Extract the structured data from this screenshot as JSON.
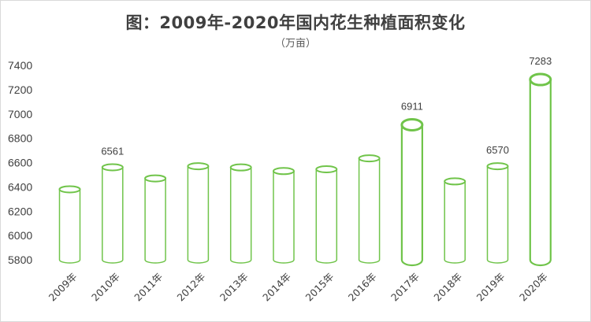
{
  "chart_data": {
    "type": "bar",
    "title": "图：2009年-2020年国内花生种植面积变化",
    "subtitle": "（万亩）",
    "categories": [
      "2009年",
      "2010年",
      "2011年",
      "2012年",
      "2013年",
      "2014年",
      "2015年",
      "2016年",
      "2017年",
      "2018年",
      "2019年",
      "2020年"
    ],
    "values": [
      6380,
      6561,
      6470,
      6570,
      6560,
      6530,
      6545,
      6635,
      6911,
      6445,
      6570,
      7283
    ],
    "data_labels": {
      "1": "6561",
      "8": "6911",
      "10": "6570",
      "11": "7283"
    },
    "yticks": [
      "7400",
      "7200",
      "7000",
      "6800",
      "6600",
      "6400",
      "6200",
      "6000",
      "5800"
    ],
    "ylim": [
      5800,
      7400
    ],
    "grid": false,
    "legend": "none",
    "bar_color": "#70c44a"
  }
}
